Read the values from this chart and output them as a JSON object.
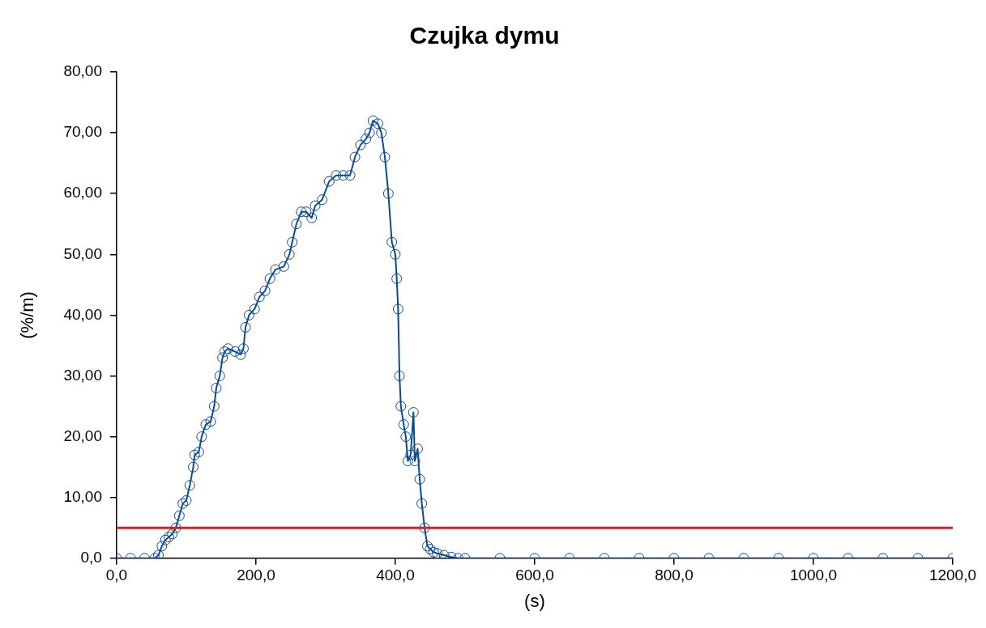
{
  "chart_data": {
    "type": "line",
    "title": "Czujka dymu",
    "xlabel": "(s)",
    "ylabel": "(%/m)",
    "xlim": [
      0,
      1200
    ],
    "ylim": [
      0,
      80
    ],
    "xticks": [
      {
        "value": 0,
        "label": "0,0"
      },
      {
        "value": 200,
        "label": "200,0"
      },
      {
        "value": 400,
        "label": "400,0"
      },
      {
        "value": 600,
        "label": "600,0"
      },
      {
        "value": 800,
        "label": "800,0"
      },
      {
        "value": 1000,
        "label": "1000,0"
      },
      {
        "value": 1200,
        "label": "1200,0"
      }
    ],
    "yticks": [
      {
        "value": 0,
        "label": "0,0"
      },
      {
        "value": 10,
        "label": "10,00"
      },
      {
        "value": 20,
        "label": "20,00"
      },
      {
        "value": 30,
        "label": "30,00"
      },
      {
        "value": 40,
        "label": "40,00"
      },
      {
        "value": 50,
        "label": "50,00"
      },
      {
        "value": 60,
        "label": "60,00"
      },
      {
        "value": 70,
        "label": "70,00"
      },
      {
        "value": 80,
        "label": "80,00"
      }
    ],
    "grid": false,
    "legend": false,
    "marker": "circle",
    "line_style": "solid",
    "ref_lines": [
      {
        "axis": "y",
        "value": 5,
        "color": "#e8191d"
      }
    ],
    "series": [
      {
        "color": "#0d4a92",
        "x": [
          0,
          20,
          40,
          55,
          60,
          65,
          70,
          75,
          80,
          85,
          90,
          95,
          100,
          105,
          110,
          112,
          118,
          122,
          128,
          135,
          140,
          143,
          148,
          152,
          155,
          160,
          170,
          178,
          182,
          185,
          190,
          198,
          205,
          213,
          220,
          228,
          240,
          248,
          252,
          258,
          265,
          272,
          280,
          285,
          295,
          305,
          315,
          325,
          335,
          342,
          350,
          358,
          363,
          368,
          375,
          380,
          385,
          390,
          395,
          400,
          402,
          404,
          406,
          408,
          412,
          415,
          418,
          422,
          426,
          428,
          432,
          435,
          438,
          442,
          446,
          450,
          455,
          460,
          470,
          480,
          490,
          500,
          550,
          600,
          650,
          700,
          750,
          800,
          850,
          900,
          950,
          1000,
          1050,
          1100,
          1150,
          1200
        ],
        "values": [
          0,
          0,
          0,
          0,
          0.5,
          2,
          3,
          3.5,
          4,
          5,
          7,
          9,
          9.5,
          12,
          15,
          17,
          17.5,
          20,
          22,
          22.5,
          25,
          28,
          30,
          33,
          34,
          34.5,
          34,
          33.5,
          34.5,
          38,
          40,
          41,
          43,
          44,
          46,
          47.5,
          48,
          50,
          52,
          55,
          57,
          57,
          56,
          58,
          59,
          62,
          63,
          63,
          63,
          66,
          68,
          69,
          70,
          72,
          71.5,
          70,
          66,
          60,
          52,
          50,
          46,
          41,
          30,
          25,
          22,
          20,
          16,
          17,
          24,
          16,
          18,
          13,
          9,
          5,
          2,
          1.5,
          1,
          0.8,
          0.5,
          0.2,
          0,
          0,
          0,
          0,
          0,
          0,
          0,
          0,
          0,
          0,
          0,
          0,
          0,
          0,
          0,
          0
        ]
      }
    ]
  }
}
